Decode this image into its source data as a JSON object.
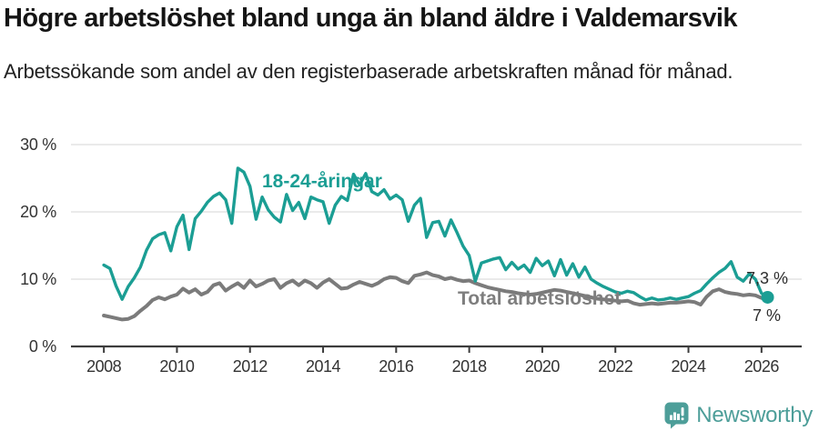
{
  "header": {
    "title": "Högre arbetslöshet bland unga än bland äldre i Valdemarsvik",
    "subtitle": "Arbetssökande som andel av den registerbaserade arbetskraften månad för månad."
  },
  "chart_data": {
    "type": "line",
    "unit": "%",
    "grid": "horizontal",
    "legend": "inline-labels",
    "ylim": [
      0,
      30
    ],
    "xlim": [
      2007.1,
      2027.1
    ],
    "yticks": [
      {
        "value": 0,
        "label": "0 %"
      },
      {
        "value": 10,
        "label": "10 %"
      },
      {
        "value": 20,
        "label": "20 %"
      },
      {
        "value": 30,
        "label": "30 %"
      }
    ],
    "xticks": [
      "2008",
      "2010",
      "2012",
      "2014",
      "2016",
      "2018",
      "2020",
      "2022",
      "2024",
      "2026"
    ],
    "x_start_year": 2008,
    "x_step_months": 2,
    "series": [
      {
        "name": "Total arbetslöshet",
        "color": "#7b7b7b",
        "end_label": "7 %",
        "values": [
          4.6,
          4.4,
          4.2,
          4.0,
          4.1,
          4.5,
          5.3,
          6.0,
          6.9,
          7.3,
          7.0,
          7.4,
          7.7,
          8.6,
          8.0,
          8.5,
          7.7,
          8.1,
          9.1,
          9.4,
          8.3,
          8.9,
          9.4,
          8.7,
          9.8,
          8.9,
          9.3,
          9.8,
          10.0,
          8.7,
          9.4,
          9.8,
          9.1,
          9.8,
          9.4,
          8.7,
          9.5,
          10.0,
          9.3,
          8.6,
          8.7,
          9.2,
          9.6,
          9.3,
          9.0,
          9.4,
          10.0,
          10.3,
          10.2,
          9.7,
          9.4,
          10.5,
          10.7,
          11.0,
          10.6,
          10.4,
          10.0,
          10.2,
          9.9,
          9.7,
          9.8,
          9.4,
          9.1,
          8.8,
          8.6,
          8.4,
          8.2,
          8.1,
          7.9,
          7.8,
          7.7,
          7.8,
          8.0,
          8.2,
          8.4,
          8.3,
          8.1,
          7.9,
          7.7,
          7.5,
          7.3,
          7.1,
          7.0,
          6.9,
          6.8,
          6.7,
          6.8,
          6.4,
          6.2,
          6.3,
          6.4,
          6.3,
          6.4,
          6.5,
          6.5,
          6.6,
          6.7,
          6.6,
          6.2,
          7.4,
          8.2,
          8.5,
          8.1,
          7.9,
          7.8,
          7.6,
          7.7,
          7.6,
          7.2,
          7.0
        ]
      },
      {
        "name": "18-24-åringar",
        "color": "#1b9e94",
        "end_label": "7,3 %",
        "values": [
          12.1,
          11.6,
          9.0,
          7.0,
          8.9,
          10.2,
          11.8,
          14.3,
          16.0,
          16.6,
          16.9,
          14.2,
          17.8,
          19.5,
          14.4,
          19.0,
          20.1,
          21.4,
          22.3,
          22.8,
          21.8,
          18.3,
          26.5,
          25.9,
          23.8,
          18.9,
          22.2,
          20.3,
          19.2,
          18.5,
          22.6,
          20.2,
          21.4,
          19.0,
          22.2,
          21.8,
          21.5,
          18.3,
          21.0,
          22.3,
          21.7,
          25.6,
          24.0,
          25.7,
          23.0,
          22.5,
          23.3,
          21.9,
          22.5,
          21.8,
          18.6,
          21.0,
          22.0,
          16.2,
          18.4,
          18.6,
          16.4,
          18.8,
          16.9,
          14.9,
          13.5,
          9.7,
          12.4,
          12.7,
          13.0,
          13.2,
          11.4,
          12.5,
          11.5,
          12.1,
          11.0,
          13.1,
          12.0,
          12.7,
          10.5,
          12.9,
          10.6,
          12.3,
          10.3,
          11.8,
          10.0,
          9.4,
          8.9,
          8.5,
          8.1,
          7.9,
          8.2,
          8.0,
          7.4,
          6.9,
          7.2,
          6.9,
          7.0,
          7.2,
          7.0,
          7.2,
          7.4,
          7.9,
          8.3,
          9.3,
          10.2,
          11.0,
          11.6,
          12.6,
          10.3,
          9.7,
          10.8,
          10.0,
          7.9,
          7.3
        ]
      }
    ],
    "annotations": {
      "youth_label": "18-24-åringar",
      "total_label": "Total arbetslöshet",
      "youth_end_value": "7,3 %",
      "total_end_value": "7 %"
    }
  },
  "colors": {
    "youth_line": "#1b9e94",
    "total_line": "#7b7b7b",
    "gridline": "#dddddd",
    "axis": "#3c3c3c",
    "brand": "#4d9e99"
  },
  "footer": {
    "brand": "Newsworthy",
    "logo_icon": "bar-chart-speech-bubble"
  }
}
